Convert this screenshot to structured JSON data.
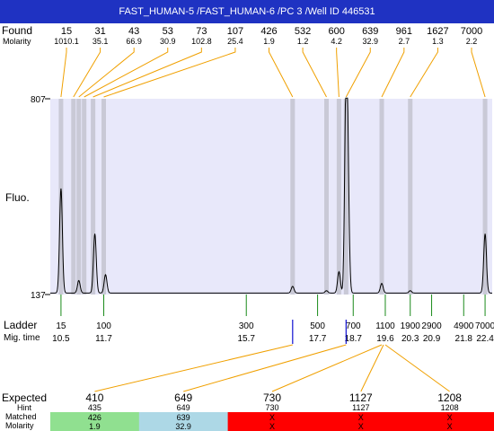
{
  "title": "FAST_HUMAN-5 /FAST_HUMAN-6 /PC 3 /Well ID 446531",
  "labels": {
    "found": "Found",
    "molarity": "Molarity",
    "fluo": "Fluo.",
    "ladder": "Ladder",
    "mig_time": "Mig. time",
    "expected": "Expected",
    "hint": "Hint",
    "matched": "Matched",
    "molarity_bottom": "Molarity"
  },
  "found": [
    {
      "size": "15",
      "molarity": "1010.1"
    },
    {
      "size": "31",
      "molarity": "35.1"
    },
    {
      "size": "43",
      "molarity": "66.9"
    },
    {
      "size": "53",
      "molarity": "30.9"
    },
    {
      "size": "73",
      "molarity": "102.8"
    },
    {
      "size": "107",
      "molarity": "25.4"
    },
    {
      "size": "426",
      "molarity": "1.9"
    },
    {
      "size": "532",
      "molarity": "1.2"
    },
    {
      "size": "600",
      "molarity": "4.2"
    },
    {
      "size": "639",
      "molarity": "32.9"
    },
    {
      "size": "961",
      "molarity": "2.7"
    },
    {
      "size": "1627",
      "molarity": "1.3"
    },
    {
      "size": "7000",
      "molarity": "2.2"
    }
  ],
  "ladder": [
    {
      "size": "15",
      "mig_time": "10.5"
    },
    {
      "size": "100",
      "mig_time": "11.7"
    },
    {
      "size": "300",
      "mig_time": "15.7"
    },
    {
      "size": "500",
      "mig_time": "17.7"
    },
    {
      "size": "700",
      "mig_time": "18.7"
    },
    {
      "size": "1100",
      "mig_time": "19.6"
    },
    {
      "size": "1900",
      "mig_time": "20.3"
    },
    {
      "size": "2900",
      "mig_time": "20.9"
    },
    {
      "size": "4900",
      "mig_time": "21.8"
    },
    {
      "size": "7000",
      "mig_time": "22.4"
    }
  ],
  "expected": [
    {
      "expected": "410",
      "hint": "435",
      "matched": "426",
      "molarity": "1.9",
      "status": "matched"
    },
    {
      "expected": "649",
      "hint": "649",
      "matched": "639",
      "molarity": "32.9",
      "status": "matched"
    },
    {
      "expected": "730",
      "hint": "730",
      "matched": "X",
      "molarity": "X",
      "status": "missing"
    },
    {
      "expected": "1127",
      "hint": "1127",
      "matched": "X",
      "molarity": "X",
      "status": "missing"
    },
    {
      "expected": "1208",
      "hint": "1208",
      "matched": "X",
      "molarity": "X",
      "status": "missing"
    }
  ],
  "colors": {
    "title_bar": "#1f32c2",
    "plot_bg": "#e8e8fa",
    "peak_band": "#c9c9d6",
    "connector": "#f0a000",
    "ladder_tick": "#1a8a1a",
    "marker_blue": "#1010d0",
    "matched_green": "#90e090",
    "matched_blue": "#add8e6",
    "missing_red": "#ff0000"
  },
  "chart_data": {
    "type": "line",
    "xlabel": "",
    "ylabel": "Fluo.",
    "ylim": [
      137,
      807
    ],
    "x_unit": "Mig. time",
    "xlim": [
      10.2,
      22.6
    ],
    "peaks_found": [
      {
        "size": 15,
        "mig_time": 10.5
      },
      {
        "size": 31,
        "mig_time": 10.85
      },
      {
        "size": 43,
        "mig_time": 11.0
      },
      {
        "size": 53,
        "mig_time": 11.15
      },
      {
        "size": 73,
        "mig_time": 11.4
      },
      {
        "size": 107,
        "mig_time": 11.7
      },
      {
        "size": 426,
        "mig_time": 17.0
      },
      {
        "size": 532,
        "mig_time": 17.95
      },
      {
        "size": 600,
        "mig_time": 18.3
      },
      {
        "size": 639,
        "mig_time": 18.5
      },
      {
        "size": 961,
        "mig_time": 19.5
      },
      {
        "size": 1627,
        "mig_time": 20.3
      },
      {
        "size": 7000,
        "mig_time": 22.4
      }
    ],
    "trace_peaks": [
      {
        "mig_time": 10.5,
        "height": 500
      },
      {
        "mig_time": 11.0,
        "height": 185
      },
      {
        "mig_time": 11.45,
        "height": 345
      },
      {
        "mig_time": 11.75,
        "height": 205
      },
      {
        "mig_time": 17.0,
        "height": 165
      },
      {
        "mig_time": 17.95,
        "height": 150
      },
      {
        "mig_time": 18.3,
        "height": 215
      },
      {
        "mig_time": 18.5,
        "height": 805
      },
      {
        "mig_time": 18.55,
        "height": 470
      },
      {
        "mig_time": 19.5,
        "height": 175
      },
      {
        "mig_time": 20.3,
        "height": 150
      },
      {
        "mig_time": 22.4,
        "height": 345
      }
    ],
    "baseline": 142
  }
}
